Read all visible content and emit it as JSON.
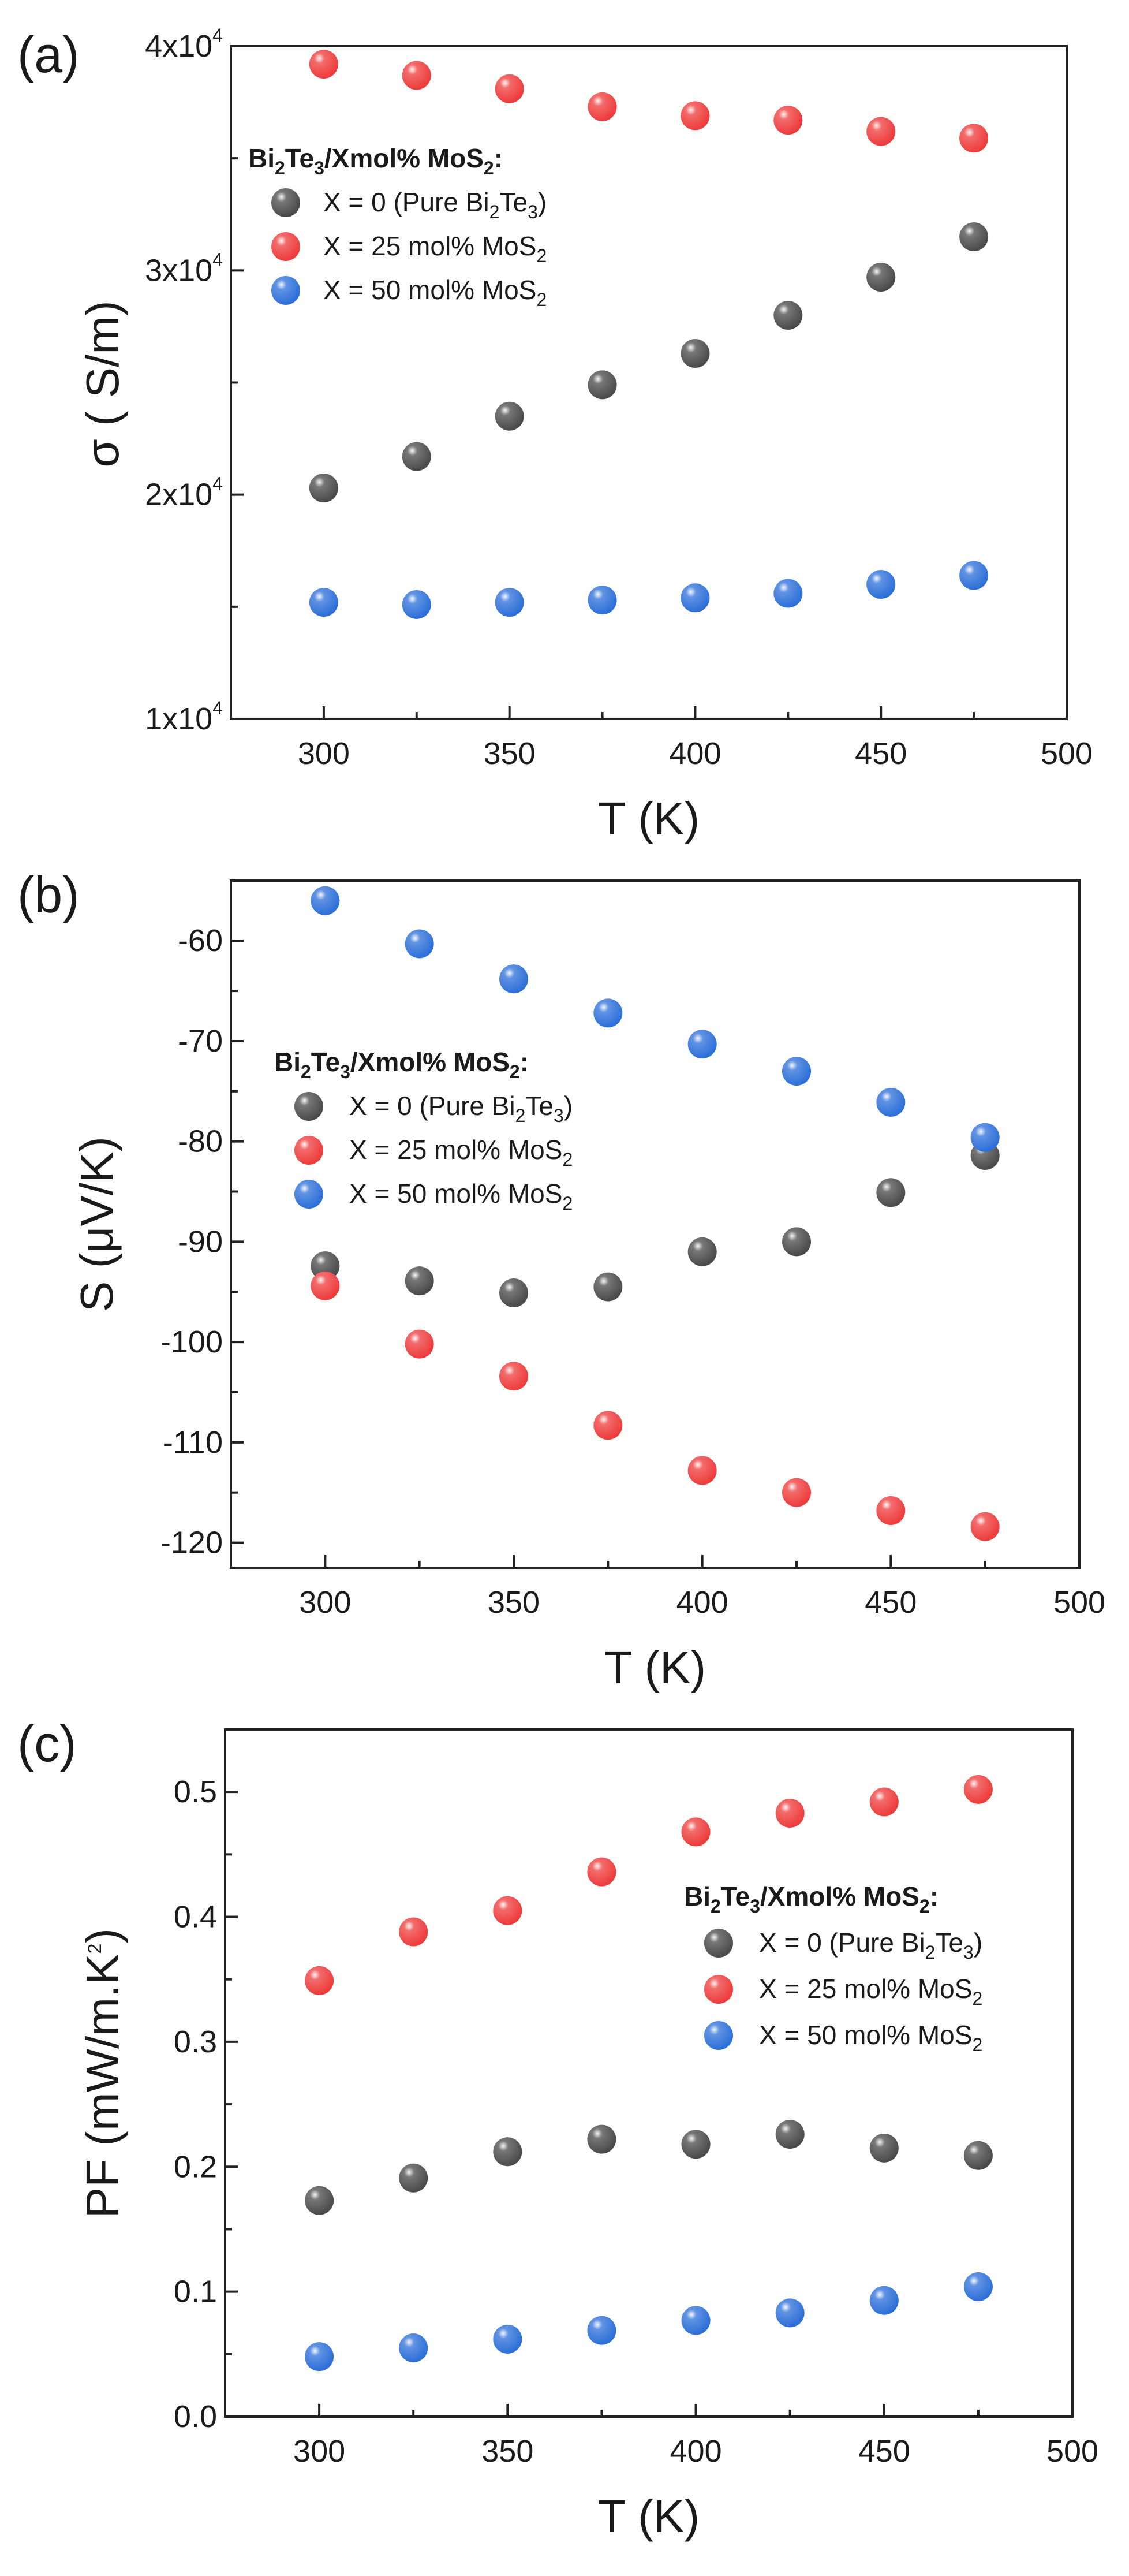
{
  "chart_data": [
    {
      "type": "scatter",
      "panel": "(a)",
      "xlabel": "T (K)",
      "ylabel": "σ ( S/m)",
      "xlim": [
        275,
        500
      ],
      "ylim": [
        10000,
        40000
      ],
      "xticks": [
        300,
        350,
        400,
        450,
        500
      ],
      "xtick_labels": [
        "300",
        "350",
        "400",
        "450",
        "500"
      ],
      "yticks": [
        10000,
        20000,
        30000,
        40000
      ],
      "ytick_labels": [
        {
          "mant": "1x10",
          "exp": "4"
        },
        {
          "mant": "2x10",
          "exp": "4"
        },
        {
          "mant": "3x10",
          "exp": "4"
        },
        {
          "mant": "4x10",
          "exp": "4"
        }
      ],
      "legend_position": "upper-left",
      "legend_title": {
        "pre": "Bi",
        "s1": "2",
        "mid": "Te",
        "s2": "3",
        "post": "/Xmol% MoS",
        "s3": "2",
        "end": ":"
      },
      "x": [
        300,
        325,
        350,
        375,
        400,
        425,
        450,
        475
      ],
      "series": [
        {
          "name": "X = 0 (Pure Bi2Te3)",
          "label": {
            "pre": "X = 0 (Pure Bi",
            "s1": "2",
            "mid": "Te",
            "s2": "3",
            "post": ")"
          },
          "color": "#4a4a4a",
          "values": [
            20300,
            21700,
            23500,
            24900,
            26300,
            28000,
            29700,
            31500
          ]
        },
        {
          "name": "X = 25 mol% MoS2",
          "label": {
            "pre": "X = 25 mol% MoS",
            "s1": "2"
          },
          "color": "#ee3b3b",
          "values": [
            39200,
            38700,
            38100,
            37300,
            36900,
            36700,
            36200,
            35900
          ]
        },
        {
          "name": "X = 50 mol% MoS2",
          "label": {
            "pre": "X = 50 mol% MoS",
            "s1": "2"
          },
          "color": "#2c6fd9",
          "values": [
            15200,
            15100,
            15200,
            15300,
            15400,
            15600,
            16000,
            16400
          ]
        }
      ]
    },
    {
      "type": "scatter",
      "panel": "(b)",
      "xlabel": "T (K)",
      "ylabel": "S (μV/K)",
      "xlim": [
        275,
        500
      ],
      "ylim": [
        -122.5,
        -54
      ],
      "xticks": [
        300,
        350,
        400,
        450,
        500
      ],
      "xtick_labels": [
        "300",
        "350",
        "400",
        "450",
        "500"
      ],
      "yticks": [
        -60,
        -70,
        -80,
        -90,
        -100,
        -110,
        -120
      ],
      "ytick_labels": [
        "-60",
        "-70",
        "-80",
        "-90",
        "-100",
        "-110",
        "-120"
      ],
      "legend_position": "middle-left",
      "legend_title": {
        "pre": "Bi",
        "s1": "2",
        "mid": "Te",
        "s2": "3",
        "post": "/Xmol% MoS",
        "s3": "2",
        "end": ":"
      },
      "x": [
        300,
        325,
        350,
        375,
        400,
        425,
        450,
        475
      ],
      "series": [
        {
          "name": "X = 0 (Pure Bi2Te3)",
          "label": {
            "pre": "X = 0 (Pure Bi",
            "s1": "2",
            "mid": "Te",
            "s2": "3",
            "post": ")"
          },
          "color": "#4a4a4a",
          "values": [
            -92.4,
            -93.9,
            -95.1,
            -94.5,
            -91.0,
            -90.0,
            -85.1,
            -81.4
          ]
        },
        {
          "name": "X = 25 mol% MoS2",
          "label": {
            "pre": "X = 25 mol% MoS",
            "s1": "2"
          },
          "color": "#ee3b3b",
          "values": [
            -94.4,
            -100.2,
            -103.4,
            -108.3,
            -112.8,
            -115.0,
            -116.8,
            -118.4
          ]
        },
        {
          "name": "X = 50 mol% MoS2",
          "label": {
            "pre": "X = 50 mol% MoS",
            "s1": "2"
          },
          "color": "#2c6fd9",
          "values": [
            -56.0,
            -60.3,
            -63.8,
            -67.2,
            -70.3,
            -73.0,
            -76.1,
            -79.6
          ]
        }
      ]
    },
    {
      "type": "scatter",
      "panel": "(c)",
      "xlabel": "T (K)",
      "ylabel": {
        "pre": "PF (mW/m.K",
        "sup": "2",
        "post": ")"
      },
      "xlim": [
        275,
        500
      ],
      "ylim": [
        0.0,
        0.55
      ],
      "xticks": [
        300,
        350,
        400,
        450,
        500
      ],
      "xtick_labels": [
        "300",
        "350",
        "400",
        "450",
        "500"
      ],
      "yticks": [
        0.0,
        0.1,
        0.2,
        0.3,
        0.4,
        0.5
      ],
      "ytick_labels": [
        "0.0",
        "0.1",
        "0.2",
        "0.3",
        "0.4",
        "0.5"
      ],
      "legend_position": "middle-right",
      "legend_title": {
        "pre": "Bi",
        "s1": "2",
        "mid": "Te",
        "s2": "3",
        "post": "/Xmol% MoS",
        "s3": "2",
        "end": ":"
      },
      "x": [
        300,
        325,
        350,
        375,
        400,
        425,
        450,
        475
      ],
      "series": [
        {
          "name": "X = 0 (Pure Bi2Te3)",
          "label": {
            "pre": "X = 0 (Pure Bi",
            "s1": "2",
            "mid": "Te",
            "s2": "3",
            "post": ")"
          },
          "color": "#4a4a4a",
          "values": [
            0.173,
            0.191,
            0.212,
            0.222,
            0.218,
            0.226,
            0.215,
            0.209
          ]
        },
        {
          "name": "X = 25 mol% MoS2",
          "label": {
            "pre": "X = 25 mol% MoS",
            "s1": "2"
          },
          "color": "#ee3b3b",
          "values": [
            0.349,
            0.388,
            0.405,
            0.436,
            0.468,
            0.483,
            0.492,
            0.502
          ]
        },
        {
          "name": "X = 50 mol% MoS2",
          "label": {
            "pre": "X = 50 mol% MoS",
            "s1": "2"
          },
          "color": "#2c6fd9",
          "values": [
            0.048,
            0.055,
            0.062,
            0.069,
            0.077,
            0.083,
            0.093,
            0.104
          ]
        }
      ]
    }
  ]
}
